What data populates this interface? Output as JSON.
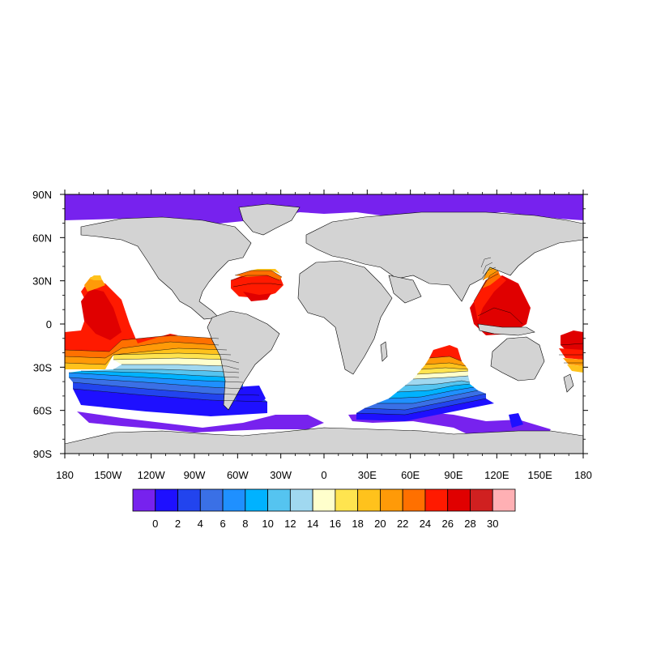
{
  "map": {
    "lon_ticks": [
      "180",
      "150W",
      "120W",
      "90W",
      "60W",
      "30W",
      "0",
      "30E",
      "60E",
      "90E",
      "120E",
      "150E",
      "180"
    ],
    "lat_ticks": [
      "90N",
      "60N",
      "30N",
      "0",
      "30S",
      "60S",
      "90S"
    ],
    "land_color": "#d3d3d3",
    "ocean_missing_color": "#ffffff",
    "projection": "cylindrical equidistant"
  },
  "colorbar": {
    "labels": [
      "0",
      "2",
      "4",
      "6",
      "8",
      "10",
      "12",
      "14",
      "16",
      "18",
      "20",
      "22",
      "24",
      "26",
      "28",
      "30"
    ],
    "colors": [
      "#7722ee",
      "#1e10ff",
      "#2244ee",
      "#3a70e6",
      "#1f90ff",
      "#00b2ff",
      "#55c4f0",
      "#a0d8f0",
      "#ffffcc",
      "#ffe44f",
      "#ffc21c",
      "#ff9a08",
      "#ff7000",
      "#ff1a00",
      "#e00000",
      "#d02020",
      "#ffb0b4"
    ]
  }
}
